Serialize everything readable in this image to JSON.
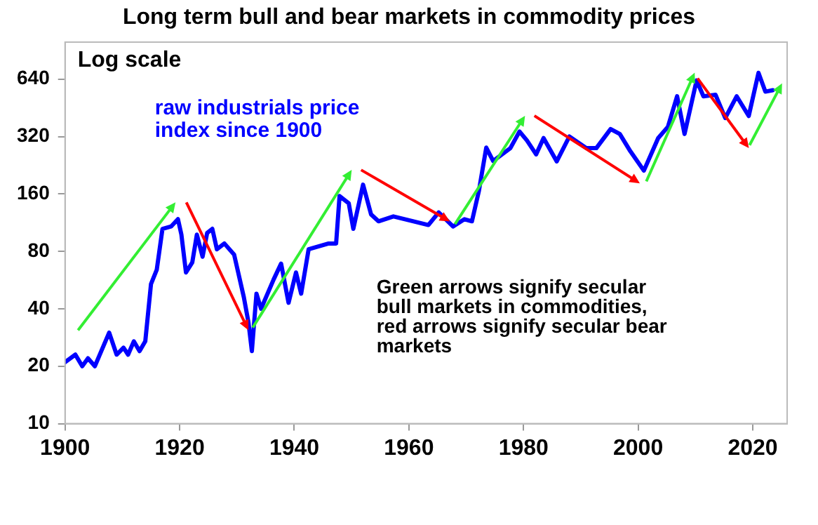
{
  "chart_data": {
    "type": "line",
    "title": "Long term bull and bear markets in commodity prices",
    "log": true,
    "legend": false,
    "grid": false,
    "xlim": [
      1900,
      2026
    ],
    "xticks": [
      1900,
      1920,
      1940,
      1960,
      1980,
      2000,
      2020
    ],
    "ylim": [
      10,
      1000
    ],
    "yticks": [
      10,
      20,
      40,
      80,
      160,
      320,
      640
    ],
    "annotations": [
      "Log scale",
      "Green arrows signify secular bull markets in commodities, red arrows signify secular bear markets"
    ],
    "series": [
      {
        "name": "raw industrials price index since 1900",
        "color": "#0000ff",
        "x": [
          1900,
          1901.8,
          1903,
          1904,
          1905.2,
          1907.7,
          1909,
          1910.2,
          1911,
          1912,
          1913,
          1914,
          1915,
          1916,
          1917,
          1918.5,
          1919.7,
          1920.3,
          1921.1,
          1922.2,
          1923,
          1924,
          1924.8,
          1925.7,
          1926.5,
          1927.8,
          1929.5,
          1931.2,
          1932,
          1932.6,
          1933.4,
          1934.2,
          1936.4,
          1937.7,
          1939,
          1940.3,
          1941.2,
          1942.5,
          1946,
          1947.3,
          1947.9,
          1949.5,
          1950.3,
          1952,
          1953.4,
          1954.7,
          1957.3,
          1960.8,
          1963.4,
          1965.2,
          1967.7,
          1969.7,
          1971,
          1972.2,
          1973.5,
          1974.7,
          1977.7,
          1979.3,
          1980.6,
          1982.2,
          1983.5,
          1985.8,
          1988,
          1991,
          1992.7,
          1995.2,
          1996.8,
          1998.5,
          2001,
          2003.5,
          2005.2,
          2006.8,
          2008.1,
          2010.2,
          2011.4,
          2013.5,
          2015.2,
          2017.2,
          2019.3,
          2021,
          2022.2,
          2023.5
        ],
        "values": [
          21,
          23,
          20,
          22,
          20,
          30,
          23,
          25,
          23,
          27,
          24,
          27,
          54,
          64,
          105,
          108,
          118,
          98,
          62,
          70,
          98,
          75,
          100,
          105,
          82,
          88,
          77,
          46,
          34,
          24,
          48,
          40,
          57,
          69,
          43,
          62,
          48,
          82,
          88,
          88,
          156,
          143,
          105,
          179,
          125,
          115,
          122,
          115,
          110,
          128,
          108,
          118,
          115,
          165,
          280,
          238,
          278,
          340,
          305,
          258,
          314,
          237,
          320,
          278,
          278,
          350,
          330,
          272,
          212,
          314,
          360,
          520,
          330,
          630,
          520,
          530,
          400,
          520,
          410,
          690,
          550,
          560
        ]
      }
    ]
  }
}
